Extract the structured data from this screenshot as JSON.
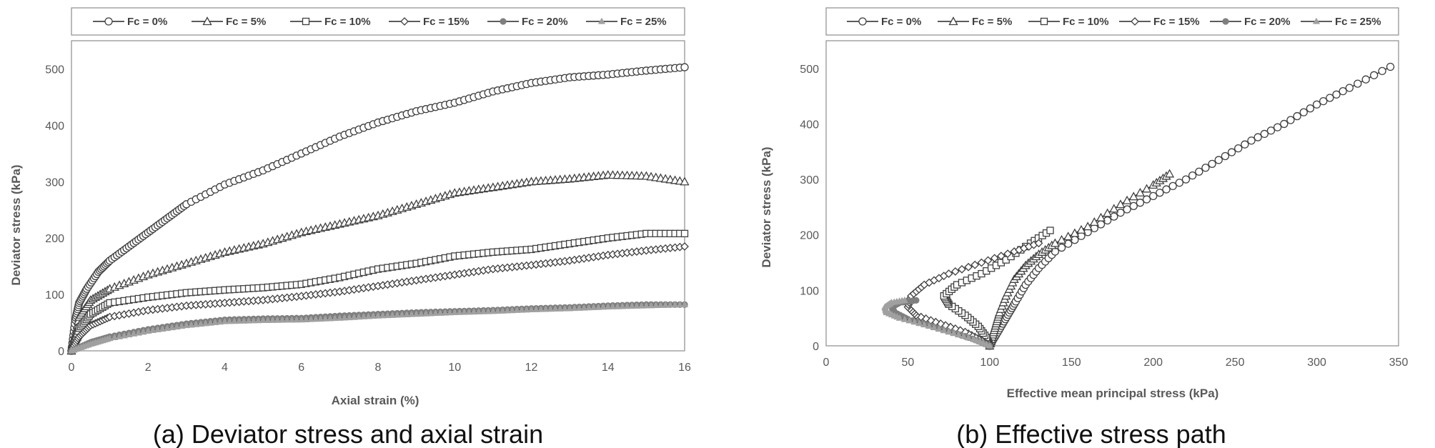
{
  "chart_data": [
    {
      "type": "line",
      "caption": "(a) Deviator stress and axial strain",
      "xlabel": "Axial strain (%)",
      "ylabel": "Deviator stress (kPa)",
      "xlim": [
        0,
        16
      ],
      "ylim": [
        0,
        550
      ],
      "xticks": [
        "0",
        "2",
        "4",
        "6",
        "8",
        "10",
        "12",
        "14",
        "16"
      ],
      "yticks": [
        "0",
        "100",
        "200",
        "300",
        "400",
        "500"
      ],
      "grid": false,
      "legend": "top",
      "series": [
        {
          "name": "Fc = 0%",
          "marker": "circle",
          "color": "#404040",
          "x": [
            0,
            0.1,
            0.2,
            0.4,
            0.7,
            1,
            1.5,
            2,
            2.5,
            3,
            4,
            5,
            6,
            7,
            8,
            9,
            10,
            11,
            12,
            13,
            14,
            15,
            16
          ],
          "y": [
            0,
            55,
            85,
            110,
            140,
            160,
            185,
            210,
            235,
            260,
            295,
            320,
            350,
            380,
            405,
            425,
            440,
            460,
            475,
            485,
            490,
            497,
            503
          ]
        },
        {
          "name": "Fc = 5%",
          "marker": "triangle",
          "color": "#404040",
          "x": [
            0,
            0.2,
            0.5,
            1,
            2,
            3,
            4,
            5,
            6,
            7,
            8,
            9,
            10,
            11,
            12,
            13,
            14,
            15,
            16
          ],
          "y": [
            0,
            60,
            90,
            110,
            135,
            155,
            175,
            190,
            210,
            225,
            240,
            260,
            280,
            290,
            300,
            305,
            312,
            310,
            300
          ]
        },
        {
          "name": "Fc = 10%",
          "marker": "square",
          "color": "#404040",
          "x": [
            0,
            0.2,
            0.5,
            1,
            2,
            3,
            4,
            5,
            6,
            7,
            8,
            9,
            10,
            11,
            12,
            13,
            14,
            15,
            16
          ],
          "y": [
            0,
            40,
            65,
            85,
            95,
            103,
            108,
            112,
            118,
            130,
            145,
            155,
            168,
            175,
            180,
            190,
            200,
            208,
            208
          ]
        },
        {
          "name": "Fc = 15%",
          "marker": "diamond",
          "color": "#404040",
          "x": [
            0,
            0.2,
            0.5,
            1,
            2,
            3,
            4,
            5,
            6,
            7,
            8,
            9,
            10,
            11,
            12,
            13,
            14,
            15,
            16
          ],
          "y": [
            0,
            25,
            45,
            60,
            72,
            80,
            85,
            90,
            97,
            105,
            115,
            125,
            135,
            145,
            152,
            160,
            170,
            178,
            185
          ]
        },
        {
          "name": "Fc = 20%",
          "marker": "dot",
          "color": "#7f7f7f",
          "x": [
            0,
            0.5,
            1,
            2,
            3,
            4,
            5,
            6,
            7,
            8,
            9,
            10,
            11,
            12,
            13,
            14,
            15,
            16
          ],
          "y": [
            0,
            15,
            25,
            38,
            48,
            55,
            57,
            58,
            62,
            65,
            68,
            70,
            72,
            75,
            77,
            80,
            82,
            82
          ]
        },
        {
          "name": "Fc = 25%",
          "marker": "smalltriangle",
          "color": "#a0a0a0",
          "x": [
            0,
            0.5,
            1,
            2,
            3,
            4,
            5,
            6,
            7,
            8,
            9,
            10,
            11,
            12,
            13,
            14,
            15,
            16
          ],
          "y": [
            0,
            12,
            22,
            35,
            45,
            52,
            54,
            55,
            58,
            62,
            65,
            68,
            70,
            73,
            75,
            78,
            80,
            82
          ]
        }
      ]
    },
    {
      "type": "line",
      "caption": "(b) Effective stress path",
      "xlabel": "Effective mean principal stress (kPa)",
      "ylabel": "Deviator stress (kPa)",
      "xlim": [
        0,
        350
      ],
      "ylim": [
        0,
        550
      ],
      "xticks": [
        "0",
        "50",
        "100",
        "150",
        "200",
        "250",
        "300",
        "350"
      ],
      "yticks": [
        "0",
        "100",
        "200",
        "300",
        "400",
        "500"
      ],
      "grid": false,
      "legend": "top",
      "series": [
        {
          "name": "Fc = 0%",
          "marker": "circle",
          "color": "#404040",
          "x": [
            100,
            104,
            108,
            112,
            116,
            122,
            130,
            140,
            160,
            180,
            200,
            220,
            240,
            260,
            280,
            300,
            320,
            345
          ],
          "y": [
            0,
            20,
            40,
            60,
            80,
            110,
            140,
            170,
            205,
            240,
            270,
            300,
            335,
            370,
            400,
            435,
            465,
            503
          ]
        },
        {
          "name": "Fc = 5%",
          "marker": "triangle",
          "color": "#404040",
          "x": [
            100,
            102,
            104,
            106,
            110,
            115,
            122,
            130,
            140,
            160,
            180,
            200,
            210
          ],
          "y": [
            0,
            20,
            40,
            60,
            90,
            120,
            145,
            165,
            185,
            215,
            255,
            290,
            310
          ]
        },
        {
          "name": "Fc = 10%",
          "marker": "square",
          "color": "#404040",
          "x": [
            100,
            98,
            93,
            85,
            75,
            72,
            80,
            95,
            110,
            125,
            137
          ],
          "y": [
            0,
            15,
            35,
            55,
            75,
            90,
            110,
            130,
            155,
            185,
            208
          ]
        },
        {
          "name": "Fc = 15%",
          "marker": "diamond",
          "color": "#404040",
          "x": [
            100,
            95,
            85,
            70,
            55,
            50,
            52,
            60,
            75,
            95,
            115,
            130
          ],
          "y": [
            0,
            10,
            25,
            40,
            55,
            70,
            90,
            110,
            130,
            150,
            170,
            185
          ]
        },
        {
          "name": "Fc = 20%",
          "marker": "dot",
          "color": "#7f7f7f",
          "x": [
            100,
            92,
            80,
            65,
            50,
            42,
            40,
            45,
            55
          ],
          "y": [
            0,
            10,
            22,
            35,
            48,
            60,
            70,
            78,
            82
          ]
        },
        {
          "name": "Fc = 25%",
          "marker": "smalltriangle",
          "color": "#a0a0a0",
          "x": [
            100,
            90,
            75,
            60,
            45,
            37,
            36,
            40,
            48
          ],
          "y": [
            0,
            12,
            25,
            38,
            50,
            60,
            70,
            78,
            82
          ]
        }
      ]
    }
  ]
}
